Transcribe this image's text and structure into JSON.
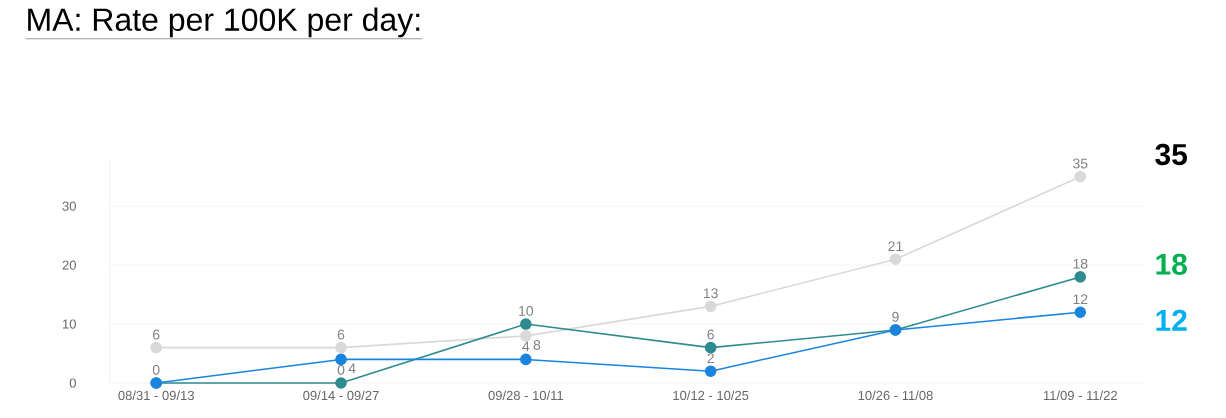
{
  "chart_data": {
    "type": "line",
    "title": "MA: Rate per 100K per day:",
    "categories": [
      "08/31 - 09/13",
      "09/14 - 09/27",
      "09/28 - 10/11",
      "10/12 - 10/25",
      "10/26 - 11/08",
      "11/09 - 11/22"
    ],
    "series": [
      {
        "color": "#d9d9d9",
        "values": [
          6,
          6,
          8,
          13,
          21,
          35
        ],
        "value_labels": [
          "6",
          "6",
          "8",
          "13",
          "21",
          "35"
        ]
      },
      {
        "color": "#2e8b8f",
        "values": [
          0,
          0,
          10,
          6,
          9,
          18
        ],
        "value_labels": [
          "0",
          "0",
          "10",
          "6",
          "9",
          "18"
        ]
      },
      {
        "color": "#1a84de",
        "values": [
          0,
          4,
          4,
          2,
          9,
          12
        ],
        "value_labels": [
          null,
          "4",
          "4",
          "2",
          null,
          "12"
        ]
      }
    ],
    "ylim": [
      0,
      38
    ],
    "yticks": [
      0,
      10,
      20,
      30
    ],
    "grid": "y",
    "marker": "circle",
    "annotations": [
      "35",
      "18",
      "12"
    ]
  }
}
